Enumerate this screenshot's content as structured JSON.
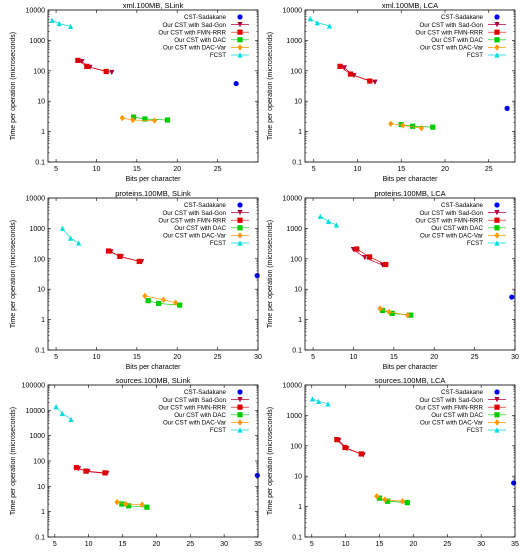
{
  "chart_data": [
    {
      "type": "scatter",
      "title": "xml.100MB, SLink",
      "xlabel": "Bits per character",
      "ylabel": "Time per operation (microseconds)",
      "xlim": [
        4,
        30
      ],
      "ylim": [
        0.1,
        10000
      ],
      "xticks": [
        5,
        10,
        15,
        20,
        25
      ],
      "yticks": [
        0.1,
        1,
        10,
        100,
        1000,
        10000
      ],
      "ytick_labels": [
        "0.1",
        "1",
        "10",
        "100",
        "1000",
        "10000"
      ],
      "y_scale": "log",
      "legend_position": "top-right",
      "series": [
        {
          "name": "CST-Sadakane",
          "color": "#0000ff",
          "marker": "circle",
          "line": false,
          "x": [
            27.3
          ],
          "y": [
            38
          ]
        },
        {
          "name": "Our CST with Sad-Gon",
          "color": "#b0003a",
          "marker": "triangle-down",
          "line": true,
          "x": [
            8.2,
            9.2,
            11.9
          ],
          "y": [
            200,
            130,
            88
          ]
        },
        {
          "name": "Our CST with FMN-RRR",
          "color": "#e00000",
          "marker": "square",
          "line": true,
          "x": [
            7.7,
            8.8,
            11.2
          ],
          "y": [
            220,
            140,
            95
          ]
        },
        {
          "name": "Our CST with DAC",
          "color": "#00cc00",
          "marker": "square",
          "line": true,
          "x": [
            14.6,
            16.0,
            18.8
          ],
          "y": [
            3.0,
            2.6,
            2.4
          ]
        },
        {
          "name": "Our CST with DAC-Var",
          "color": "#ff9900",
          "marker": "diamond",
          "line": true,
          "x": [
            13.2,
            14.5,
            17.2
          ],
          "y": [
            2.8,
            2.4,
            2.3
          ]
        },
        {
          "name": "FCST",
          "color": "#00dddd",
          "marker": "triangle-up",
          "line": true,
          "x": [
            4.5,
            5.4,
            6.8
          ],
          "y": [
            4600,
            3600,
            2900
          ]
        }
      ]
    },
    {
      "type": "scatter",
      "title": "xml.100MB, LCA",
      "xlabel": "Bits per character",
      "ylabel": "Time per operation (microseconds)",
      "xlim": [
        4,
        28
      ],
      "ylim": [
        0.1,
        10000
      ],
      "xticks": [
        5,
        10,
        15,
        20,
        25
      ],
      "yticks": [
        0.1,
        1,
        10,
        100,
        1000,
        10000
      ],
      "ytick_labels": [
        "0.1",
        "1",
        "10",
        "100",
        "1000",
        "10000"
      ],
      "y_scale": "log",
      "legend_position": "top-right",
      "series": [
        {
          "name": "CST-Sadakane",
          "color": "#0000ff",
          "marker": "circle",
          "line": false,
          "x": [
            27.1
          ],
          "y": [
            5.8
          ]
        },
        {
          "name": "Our CST with Sad-Gon",
          "color": "#b0003a",
          "marker": "triangle-down",
          "line": true,
          "x": [
            8.5,
            9.6,
            12.0
          ],
          "y": [
            125,
            70,
            42
          ]
        },
        {
          "name": "Our CST with FMN-RRR",
          "color": "#e00000",
          "marker": "square",
          "line": true,
          "x": [
            8.0,
            9.2,
            11.4
          ],
          "y": [
            140,
            78,
            46
          ]
        },
        {
          "name": "Our CST with DAC",
          "color": "#00cc00",
          "marker": "square",
          "line": true,
          "x": [
            15.0,
            16.3,
            18.6
          ],
          "y": [
            1.7,
            1.5,
            1.4
          ]
        },
        {
          "name": "Our CST with DAC-Var",
          "color": "#ff9900",
          "marker": "diamond",
          "line": true,
          "x": [
            13.8,
            15.2,
            17.3
          ],
          "y": [
            1.8,
            1.6,
            1.3
          ]
        },
        {
          "name": "FCST",
          "color": "#00dddd",
          "marker": "triangle-up",
          "line": true,
          "x": [
            4.6,
            5.4,
            6.8
          ],
          "y": [
            5200,
            3800,
            3000
          ]
        }
      ]
    },
    {
      "type": "scatter",
      "title": "proteins.100MB, SLink",
      "xlabel": "Bits per character",
      "ylabel": "Time per operation (microseconds)",
      "xlim": [
        4,
        30
      ],
      "ylim": [
        0.1,
        10000
      ],
      "xticks": [
        5,
        10,
        15,
        20,
        25,
        30
      ],
      "yticks": [
        0.1,
        1,
        10,
        100,
        1000,
        10000
      ],
      "ytick_labels": [
        "0.1",
        "1",
        "10",
        "100",
        "1000",
        "10000"
      ],
      "y_scale": "log",
      "legend_position": "top-right",
      "series": [
        {
          "name": "CST-Sadakane",
          "color": "#0000ff",
          "marker": "circle",
          "line": false,
          "x": [
            29.9
          ],
          "y": [
            28
          ]
        },
        {
          "name": "Our CST with Sad-Gon",
          "color": "#b0003a",
          "marker": "triangle-down",
          "line": true,
          "x": [
            11.8,
            13.1,
            15.6
          ],
          "y": [
            170,
            115,
            80
          ]
        },
        {
          "name": "Our CST with FMN-RRR",
          "color": "#e00000",
          "marker": "square",
          "line": true,
          "x": [
            11.5,
            12.9,
            15.3
          ],
          "y": [
            180,
            120,
            82
          ]
        },
        {
          "name": "Our CST with DAC",
          "color": "#00cc00",
          "marker": "square",
          "line": true,
          "x": [
            16.4,
            17.7,
            20.3
          ],
          "y": [
            4.2,
            3.4,
            3.0
          ]
        },
        {
          "name": "Our CST with DAC-Var",
          "color": "#ff9900",
          "marker": "diamond",
          "line": true,
          "x": [
            16.0,
            18.3,
            19.8
          ],
          "y": [
            6.0,
            4.5,
            3.6
          ]
        },
        {
          "name": "FCST",
          "color": "#00dddd",
          "marker": "triangle-up",
          "line": true,
          "x": [
            5.8,
            6.8,
            7.8
          ],
          "y": [
            1000,
            480,
            330
          ]
        }
      ]
    },
    {
      "type": "scatter",
      "title": "proteins.100MB, LCA",
      "xlabel": "Bits per character",
      "ylabel": "Time per operation (microseconds)",
      "xlim": [
        4,
        30
      ],
      "ylim": [
        0.1,
        10000
      ],
      "xticks": [
        5,
        10,
        15,
        20,
        25,
        30
      ],
      "yticks": [
        0.1,
        1,
        10,
        100,
        1000,
        10000
      ],
      "ytick_labels": [
        "0.1",
        "1",
        "10",
        "100",
        "1000",
        "10000"
      ],
      "y_scale": "log",
      "legend_position": "top-right",
      "series": [
        {
          "name": "CST-Sadakane",
          "color": "#0000ff",
          "marker": "circle",
          "line": false,
          "x": [
            29.6
          ],
          "y": [
            5.5
          ]
        },
        {
          "name": "Our CST with Sad-Gon",
          "color": "#b0003a",
          "marker": "triangle-down",
          "line": true,
          "x": [
            10.0,
            11.4,
            13.6
          ],
          "y": [
            200,
            110,
            62
          ]
        },
        {
          "name": "Our CST with FMN-RRR",
          "color": "#e00000",
          "marker": "square",
          "line": true,
          "x": [
            10.4,
            12.0,
            14.0
          ],
          "y": [
            210,
            115,
            65
          ]
        },
        {
          "name": "Our CST with DAC",
          "color": "#00cc00",
          "marker": "square",
          "line": true,
          "x": [
            13.6,
            14.8,
            17.1
          ],
          "y": [
            2.0,
            1.6,
            1.4
          ]
        },
        {
          "name": "Our CST with DAC-Var",
          "color": "#ff9900",
          "marker": "diamond",
          "line": true,
          "x": [
            13.3,
            14.4,
            16.7
          ],
          "y": [
            2.3,
            1.8,
            1.4
          ]
        },
        {
          "name": "FCST",
          "color": "#00dddd",
          "marker": "triangle-up",
          "line": true,
          "x": [
            5.9,
            6.9,
            7.9
          ],
          "y": [
            2500,
            1700,
            1300
          ]
        }
      ]
    },
    {
      "type": "scatter",
      "title": "sources.100MB, SLink",
      "xlabel": "Bits per character",
      "ylabel": "Time per operation (microseconds)",
      "xlim": [
        4,
        35
      ],
      "ylim": [
        0.1,
        100000
      ],
      "xticks": [
        5,
        10,
        15,
        20,
        25,
        30,
        35
      ],
      "yticks": [
        0.1,
        1,
        10,
        100,
        1000,
        10000,
        100000
      ],
      "ytick_labels": [
        "0.1",
        "1",
        "10",
        "100",
        "1000",
        "10000",
        "100000"
      ],
      "y_scale": "log",
      "legend_position": "top-right",
      "series": [
        {
          "name": "CST-Sadakane",
          "color": "#0000ff",
          "marker": "circle",
          "line": false,
          "x": [
            34.9
          ],
          "y": [
            27
          ]
        },
        {
          "name": "Our CST with Sad-Gon",
          "color": "#b0003a",
          "marker": "triangle-down",
          "line": true,
          "x": [
            8.5,
            9.9,
            12.7
          ],
          "y": [
            50,
            38,
            32
          ]
        },
        {
          "name": "Our CST with FMN-RRR",
          "color": "#e00000",
          "marker": "square",
          "line": true,
          "x": [
            8.2,
            9.6,
            12.4
          ],
          "y": [
            55,
            40,
            34
          ]
        },
        {
          "name": "Our CST with DAC",
          "color": "#00cc00",
          "marker": "square",
          "line": true,
          "x": [
            14.9,
            15.9,
            18.6
          ],
          "y": [
            2.0,
            1.7,
            1.5
          ]
        },
        {
          "name": "Our CST with DAC-Var",
          "color": "#ff9900",
          "marker": "diamond",
          "line": true,
          "x": [
            14.2,
            15.5,
            17.9
          ],
          "y": [
            2.4,
            2.0,
            1.9
          ]
        },
        {
          "name": "FCST",
          "color": "#00dddd",
          "marker": "triangle-up",
          "line": true,
          "x": [
            5.2,
            6.1,
            7.4
          ],
          "y": [
            14000,
            7500,
            4400
          ]
        }
      ]
    },
    {
      "type": "scatter",
      "title": "sources.100MB, LCA",
      "xlabel": "Bits per character",
      "ylabel": "Time per operation (microseconds)",
      "xlim": [
        4,
        35
      ],
      "ylim": [
        0.1,
        10000
      ],
      "xticks": [
        5,
        10,
        15,
        20,
        25,
        30,
        35
      ],
      "yticks": [
        0.1,
        1,
        10,
        100,
        1000,
        10000
      ],
      "ytick_labels": [
        "0.1",
        "1",
        "10",
        "100",
        "1000",
        "10000"
      ],
      "y_scale": "log",
      "legend_position": "top-right",
      "series": [
        {
          "name": "CST-Sadakane",
          "color": "#0000ff",
          "marker": "circle",
          "line": false,
          "x": [
            34.8
          ],
          "y": [
            6.0
          ]
        },
        {
          "name": "Our CST with Sad-Gon",
          "color": "#b0003a",
          "marker": "triangle-down",
          "line": true,
          "x": [
            9.0,
            10.2,
            12.6
          ],
          "y": [
            150,
            80,
            50
          ]
        },
        {
          "name": "Our CST with FMN-RRR",
          "color": "#e00000",
          "marker": "square",
          "line": true,
          "x": [
            8.7,
            9.9,
            12.3
          ],
          "y": [
            160,
            88,
            54
          ]
        },
        {
          "name": "Our CST with DAC",
          "color": "#00cc00",
          "marker": "square",
          "line": true,
          "x": [
            15.0,
            16.2,
            19.1
          ],
          "y": [
            1.9,
            1.5,
            1.35
          ]
        },
        {
          "name": "Our CST with DAC-Var",
          "color": "#ff9900",
          "marker": "diamond",
          "line": true,
          "x": [
            14.6,
            15.8,
            18.4
          ],
          "y": [
            2.2,
            1.7,
            1.5
          ]
        },
        {
          "name": "FCST",
          "color": "#00dddd",
          "marker": "triangle-up",
          "line": true,
          "x": [
            5.1,
            6.0,
            7.4
          ],
          "y": [
            3500,
            2900,
            2400
          ]
        }
      ]
    }
  ]
}
